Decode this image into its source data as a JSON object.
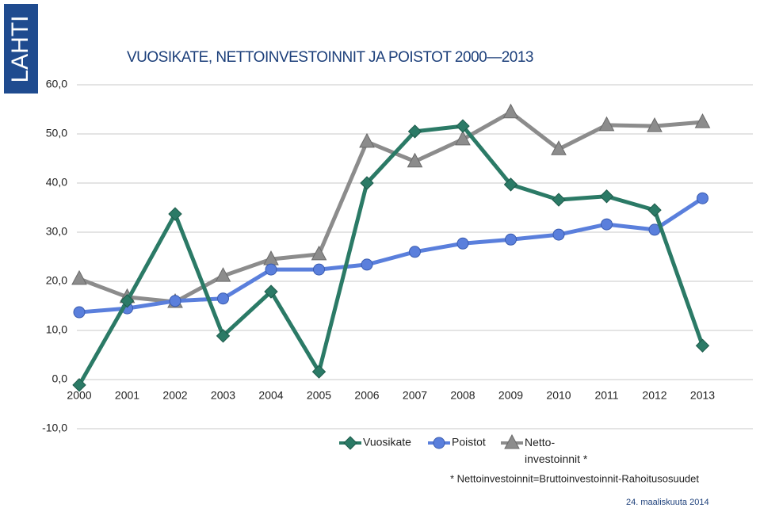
{
  "logo": "LAHTI",
  "chart_data": {
    "type": "line",
    "title": "VUOSIKATE, NETTOINVESTOINNIT JA POISTOT 2000—2013",
    "categories": [
      "2000",
      "2001",
      "2002",
      "2003",
      "2004",
      "2005",
      "2006",
      "2007",
      "2008",
      "2009",
      "2010",
      "2011",
      "2012",
      "2013"
    ],
    "series": [
      {
        "name": "Vuosikate",
        "color": "#2b7a66",
        "marker": "diamond",
        "values": [
          -1.1,
          16.0,
          33.7,
          8.9,
          17.9,
          1.6,
          40.0,
          50.5,
          51.6,
          39.7,
          36.6,
          37.3,
          34.5,
          6.9
        ]
      },
      {
        "name": "Poistot",
        "color": "#5a7fdc",
        "marker": "circle",
        "values": [
          13.7,
          14.5,
          16.0,
          16.5,
          22.4,
          22.4,
          23.4,
          26.0,
          27.7,
          28.5,
          29.5,
          31.6,
          30.5,
          36.9
        ]
      },
      {
        "name": "Netto-\ninvestoinnit *",
        "color": "#8c8c8c",
        "marker": "triangle",
        "values": [
          20.5,
          16.8,
          15.8,
          21.1,
          24.5,
          25.5,
          48.4,
          44.4,
          48.9,
          54.4,
          46.9,
          51.8,
          51.6,
          52.4
        ]
      }
    ],
    "ylim": [
      -10,
      60
    ],
    "yticks": [
      {
        "value": -10,
        "label": "-10,0"
      },
      {
        "value": 0,
        "label": "0,0"
      },
      {
        "value": 10,
        "label": "10,0"
      },
      {
        "value": 20,
        "label": "20,0"
      },
      {
        "value": 30,
        "label": "30,0"
      },
      {
        "value": 40,
        "label": "40,0"
      },
      {
        "value": 50,
        "label": "50,0"
      },
      {
        "value": 60,
        "label": "60,0"
      }
    ],
    "grid": true,
    "footnote": "* Nettoinvestoinnit=Bruttoinvestoinnit-Rahoitusosuudet",
    "date": "24. maaliskuuta 2014"
  }
}
